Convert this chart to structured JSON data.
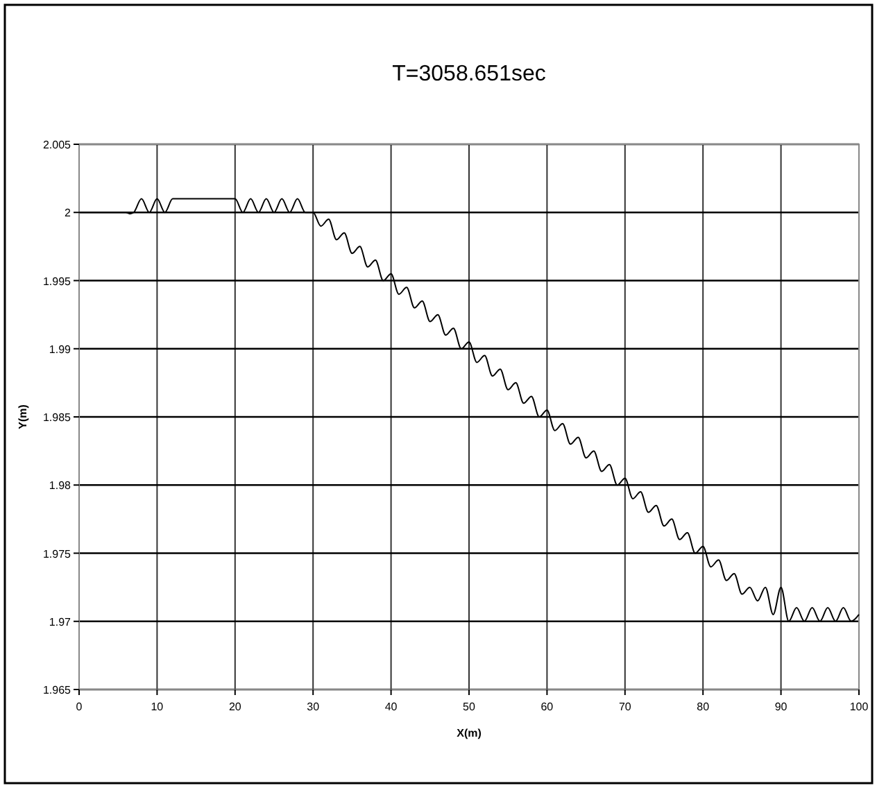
{
  "chart_data": {
    "type": "line",
    "title": "T=3058.651sec",
    "xlabel": "X(m)",
    "ylabel": "Y(m)",
    "xlim": [
      0,
      100
    ],
    "xticks": [
      0,
      10,
      20,
      30,
      40,
      50,
      60,
      70,
      80,
      90,
      100
    ],
    "ylim": [
      1.965,
      2.005
    ],
    "yticks": [
      1.965,
      1.97,
      1.975,
      1.98,
      1.985,
      1.99,
      1.995,
      2,
      2.005
    ],
    "grid": true,
    "marker": "none",
    "line_style": "solid",
    "series": [
      {
        "color": "#000000",
        "x": [
          0,
          6,
          6.5,
          7,
          8,
          9,
          10,
          11,
          12,
          12.5,
          19.5,
          20,
          21,
          22,
          23,
          24,
          25,
          26,
          27,
          28,
          29,
          30,
          31,
          32,
          33,
          34,
          35,
          36,
          37,
          38,
          39,
          40,
          41,
          42,
          43,
          44,
          45,
          46,
          47,
          48,
          49,
          50,
          51,
          52,
          53,
          54,
          55,
          56,
          57,
          58,
          59,
          60,
          61,
          62,
          63,
          64,
          65,
          66,
          67,
          68,
          69,
          70,
          71,
          72,
          73,
          74,
          75,
          76,
          77,
          78,
          79,
          80,
          81,
          82,
          83,
          84,
          85,
          86,
          87,
          88,
          89,
          90,
          91,
          92,
          93,
          94,
          95,
          96,
          97,
          98,
          99,
          100
        ],
        "values": [
          2,
          2,
          1.9999,
          2,
          2.001,
          2,
          2.001,
          2,
          2.001,
          2.001,
          2.001,
          2.001,
          2,
          2.001,
          2,
          2.001,
          2,
          2.001,
          2,
          2.001,
          2,
          2,
          1.999,
          1.9995,
          1.998,
          1.9985,
          1.997,
          1.9975,
          1.996,
          1.9965,
          1.995,
          1.9955,
          1.994,
          1.9945,
          1.993,
          1.9935,
          1.992,
          1.9925,
          1.991,
          1.9915,
          1.99,
          1.9905,
          1.989,
          1.9895,
          1.988,
          1.9885,
          1.987,
          1.9875,
          1.986,
          1.9865,
          1.985,
          1.9855,
          1.984,
          1.9845,
          1.983,
          1.9835,
          1.982,
          1.9825,
          1.981,
          1.9815,
          1.98,
          1.9805,
          1.979,
          1.9795,
          1.978,
          1.9785,
          1.977,
          1.9775,
          1.976,
          1.9765,
          1.975,
          1.9755,
          1.974,
          1.9745,
          1.973,
          1.9735,
          1.972,
          1.9725,
          1.9715,
          1.9725,
          1.9705,
          1.9725,
          1.97,
          1.971,
          1.97,
          1.971,
          1.97,
          1.971,
          1.97,
          1.971,
          1.97,
          1.9705
        ]
      }
    ]
  }
}
